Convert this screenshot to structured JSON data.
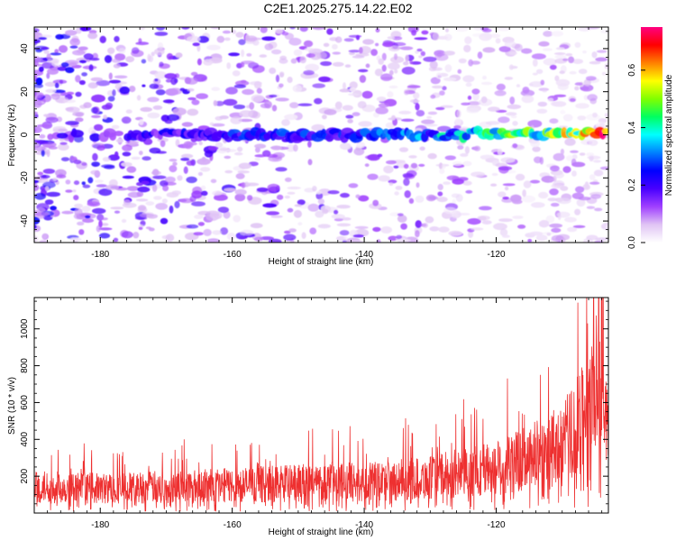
{
  "title": "C2E1.2025.275.14.22.E02",
  "chart_data": [
    {
      "type": "heatmap",
      "panel": "spectrogram",
      "xlabel": "Height of straight line (km)",
      "ylabel": "Frequency (Hz)",
      "xlim": [
        -190,
        -103
      ],
      "ylim": [
        -50,
        50
      ],
      "xticks": [
        -180,
        -160,
        -140,
        -120
      ],
      "xtick_labels": [
        "-180",
        "-160",
        "-140",
        "-120"
      ],
      "yticks": [
        -40,
        -20,
        0,
        20,
        40
      ],
      "ytick_labels": [
        "-40",
        "-20",
        "0",
        "20",
        "40"
      ],
      "colorbar": {
        "label": "Normalized spectral amplitude",
        "range": [
          0,
          0.75
        ],
        "ticks": [
          0.0,
          0.2,
          0.4,
          0.6
        ],
        "tick_labels": [
          "0.0",
          "0.2",
          "0.4",
          "0.6"
        ],
        "colors": [
          "#ffffff",
          "#e0c4f4",
          "#a040ff",
          "#4800ff",
          "#0000ff",
          "#0080ff",
          "#00ffff",
          "#00ff60",
          "#80ff00",
          "#ffff00",
          "#ff8000",
          "#ff0000",
          "#ff0080"
        ]
      },
      "description_series": [
        {
          "name": "center-line amplitude",
          "x": [
            -180,
            -170,
            -160,
            -150,
            -140,
            -130,
            -120,
            -110,
            -104
          ],
          "values": [
            0.2,
            0.22,
            0.25,
            0.28,
            0.3,
            0.35,
            0.45,
            0.55,
            0.72
          ]
        }
      ]
    },
    {
      "type": "line",
      "panel": "snr",
      "xlabel": "Height of straight line (km)",
      "ylabel": "SNR (10 * v/v)",
      "xlim": [
        -190,
        -103
      ],
      "ylim": [
        0,
        1170
      ],
      "xticks": [
        -180,
        -160,
        -140,
        -120
      ],
      "xtick_labels": [
        "-180",
        "-160",
        "-140",
        "-120"
      ],
      "yticks": [
        200,
        400,
        600,
        800,
        1000
      ],
      "ytick_labels": [
        "200",
        "400",
        "600",
        "800",
        "1000"
      ],
      "series": [
        {
          "name": "SNR envelope (approx.)",
          "color": "#ee3030",
          "x": [
            -190,
            -180,
            -170,
            -160,
            -150,
            -145,
            -140,
            -135,
            -130,
            -125,
            -120,
            -115,
            -110,
            -107,
            -105,
            -104,
            -103
          ],
          "values": [
            150,
            140,
            150,
            160,
            170,
            180,
            175,
            190,
            200,
            230,
            260,
            310,
            380,
            520,
            700,
            900,
            450
          ]
        }
      ]
    }
  ]
}
